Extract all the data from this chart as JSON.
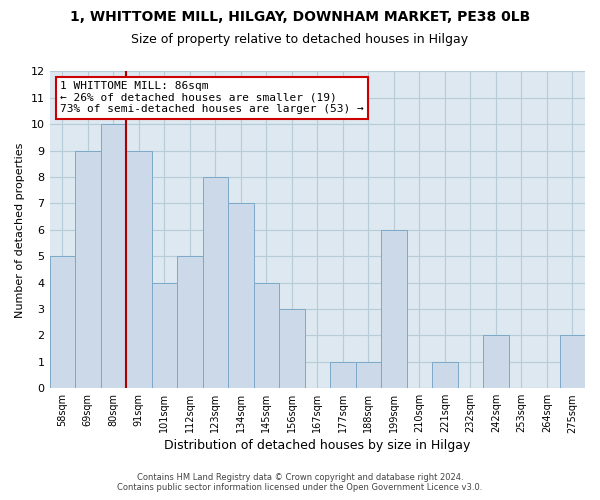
{
  "title": "1, WHITTOME MILL, HILGAY, DOWNHAM MARKET, PE38 0LB",
  "subtitle": "Size of property relative to detached houses in Hilgay",
  "xlabel": "Distribution of detached houses by size in Hilgay",
  "ylabel": "Number of detached properties",
  "bin_labels": [
    "58sqm",
    "69sqm",
    "80sqm",
    "91sqm",
    "101sqm",
    "112sqm",
    "123sqm",
    "134sqm",
    "145sqm",
    "156sqm",
    "167sqm",
    "177sqm",
    "188sqm",
    "199sqm",
    "210sqm",
    "221sqm",
    "232sqm",
    "242sqm",
    "253sqm",
    "264sqm",
    "275sqm"
  ],
  "bar_values": [
    5,
    9,
    10,
    9,
    4,
    5,
    8,
    7,
    4,
    3,
    0,
    1,
    1,
    6,
    0,
    1,
    0,
    2,
    0,
    0,
    2
  ],
  "bar_color": "#ccd9e8",
  "bar_edge_color": "#7ca8c8",
  "highlight_line_color": "#aa0000",
  "annotation_text": "1 WHITTOME MILL: 86sqm\n← 26% of detached houses are smaller (19)\n73% of semi-detached houses are larger (53) →",
  "annotation_box_color": "#ffffff",
  "annotation_box_edge_color": "#cc0000",
  "ylim": [
    0,
    12
  ],
  "yticks": [
    0,
    1,
    2,
    3,
    4,
    5,
    6,
    7,
    8,
    9,
    10,
    11,
    12
  ],
  "footer_line1": "Contains HM Land Registry data © Crown copyright and database right 2024.",
  "footer_line2": "Contains public sector information licensed under the Open Government Licence v3.0.",
  "plot_bg_color": "#dde8f0",
  "background_color": "#ffffff",
  "grid_color": "#b8ccd8"
}
